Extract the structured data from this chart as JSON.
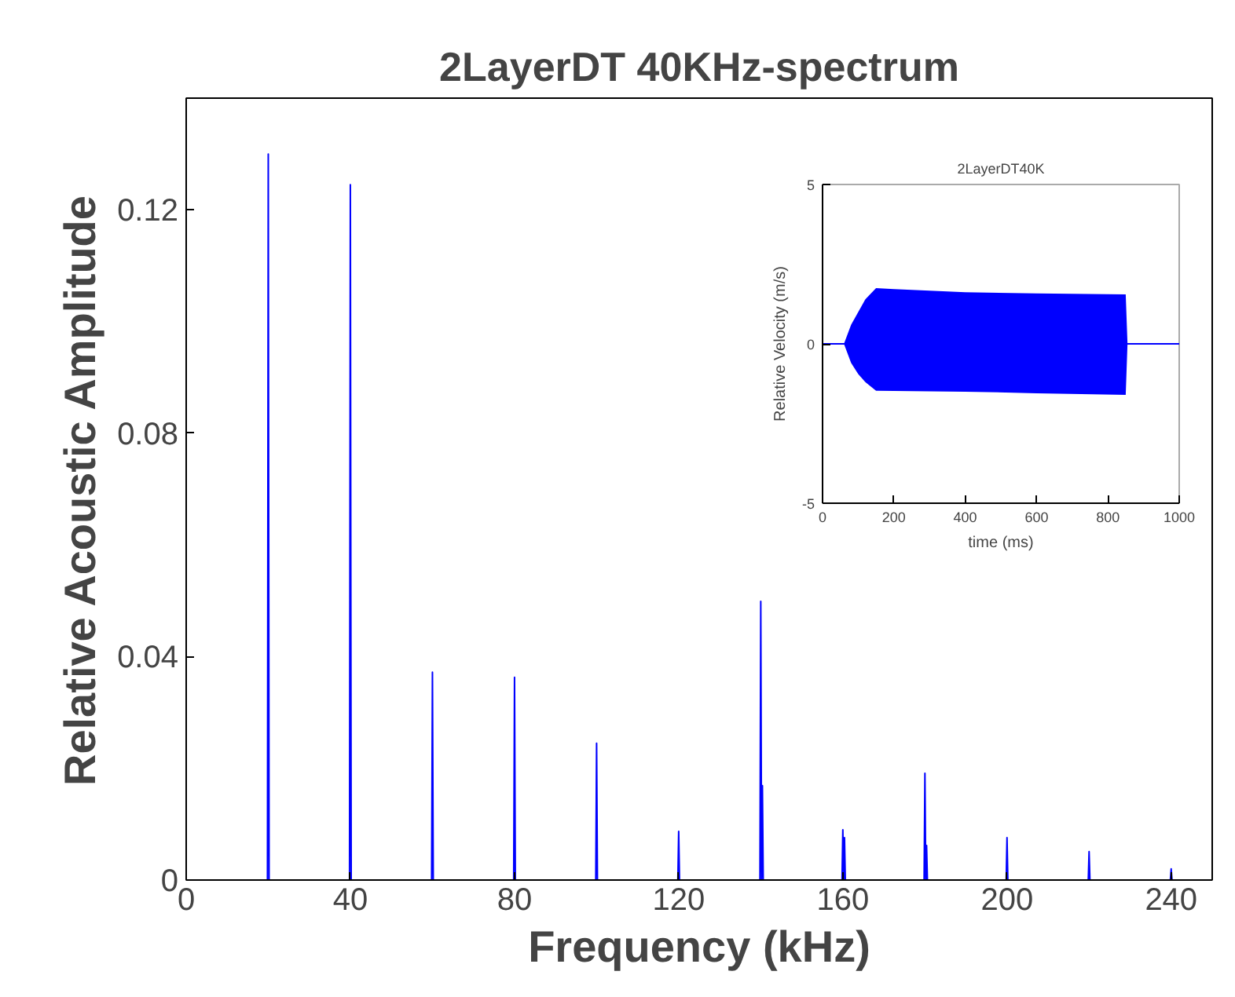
{
  "chart_data": [
    {
      "type": "line",
      "title": "2LayerDT 40KHz-spectrum",
      "xlabel": "Frequency (kHz)",
      "ylabel": "Relative Acoustic Amplitude",
      "xlim": [
        0,
        250
      ],
      "ylim": [
        0,
        0.14
      ],
      "xticks": [
        0,
        40,
        80,
        120,
        160,
        200,
        240
      ],
      "yticks": [
        0,
        0.04,
        0.08,
        0.12
      ],
      "series": [
        {
          "color": "#0000ff",
          "x": [
            0,
            19.8,
            20,
            20.2,
            39.8,
            40,
            40.2,
            59.8,
            60,
            60.2,
            79.8,
            80,
            80.2,
            99.8,
            100,
            100.2,
            119.6,
            119.8,
            120,
            120.2,
            139.6,
            139.8,
            140,
            140.2,
            140.4,
            140.6,
            159.6,
            159.8,
            160,
            160.2,
            160.4,
            160.6,
            179.6,
            179.8,
            180,
            180.2,
            180.4,
            180.6,
            199.6,
            199.8,
            200,
            200.2,
            219.6,
            219.8,
            220,
            220.2,
            239.6,
            239.8,
            240,
            240.2,
            250
          ],
          "values": [
            0,
            0,
            0.13,
            0,
            0,
            0.1245,
            0,
            0,
            0.0372,
            0,
            0,
            0.0363,
            0,
            0,
            0.0245,
            0,
            0,
            0,
            0.0087,
            0,
            0,
            0,
            0.0499,
            0,
            0.0169,
            0,
            0,
            0,
            0.009,
            0,
            0.0076,
            0,
            0,
            0,
            0.0191,
            0,
            0.0062,
            0,
            0,
            0,
            0.0076,
            0,
            0,
            0,
            0.0051,
            0,
            0,
            0,
            0.002,
            0,
            0
          ]
        }
      ]
    },
    {
      "type": "line",
      "title": "2LayerDT40K",
      "xlabel": "time (ms)",
      "ylabel": "Relative Velocity (m/s)",
      "xlim": [
        0,
        1000
      ],
      "ylim": [
        -5,
        5
      ],
      "xticks": [
        0,
        200,
        400,
        600,
        800,
        1000
      ],
      "yticks": [
        -5,
        0,
        5
      ],
      "series": [
        {
          "color": "#0000ff",
          "x": [
            0,
            60,
            80,
            100,
            120,
            150,
            200,
            400,
            600,
            850,
            855,
            1000
          ],
          "values": [
            0,
            0,
            0,
            0,
            0,
            0,
            0,
            0,
            0,
            0,
            0,
            0
          ],
          "lower": [
            0,
            0,
            -0.6,
            -0.95,
            -1.2,
            -1.47,
            -1.48,
            -1.5,
            -1.55,
            -1.6,
            0,
            0
          ],
          "upper": [
            0,
            0,
            0.6,
            1.0,
            1.4,
            1.75,
            1.72,
            1.62,
            1.58,
            1.55,
            0,
            0
          ]
        }
      ]
    }
  ]
}
